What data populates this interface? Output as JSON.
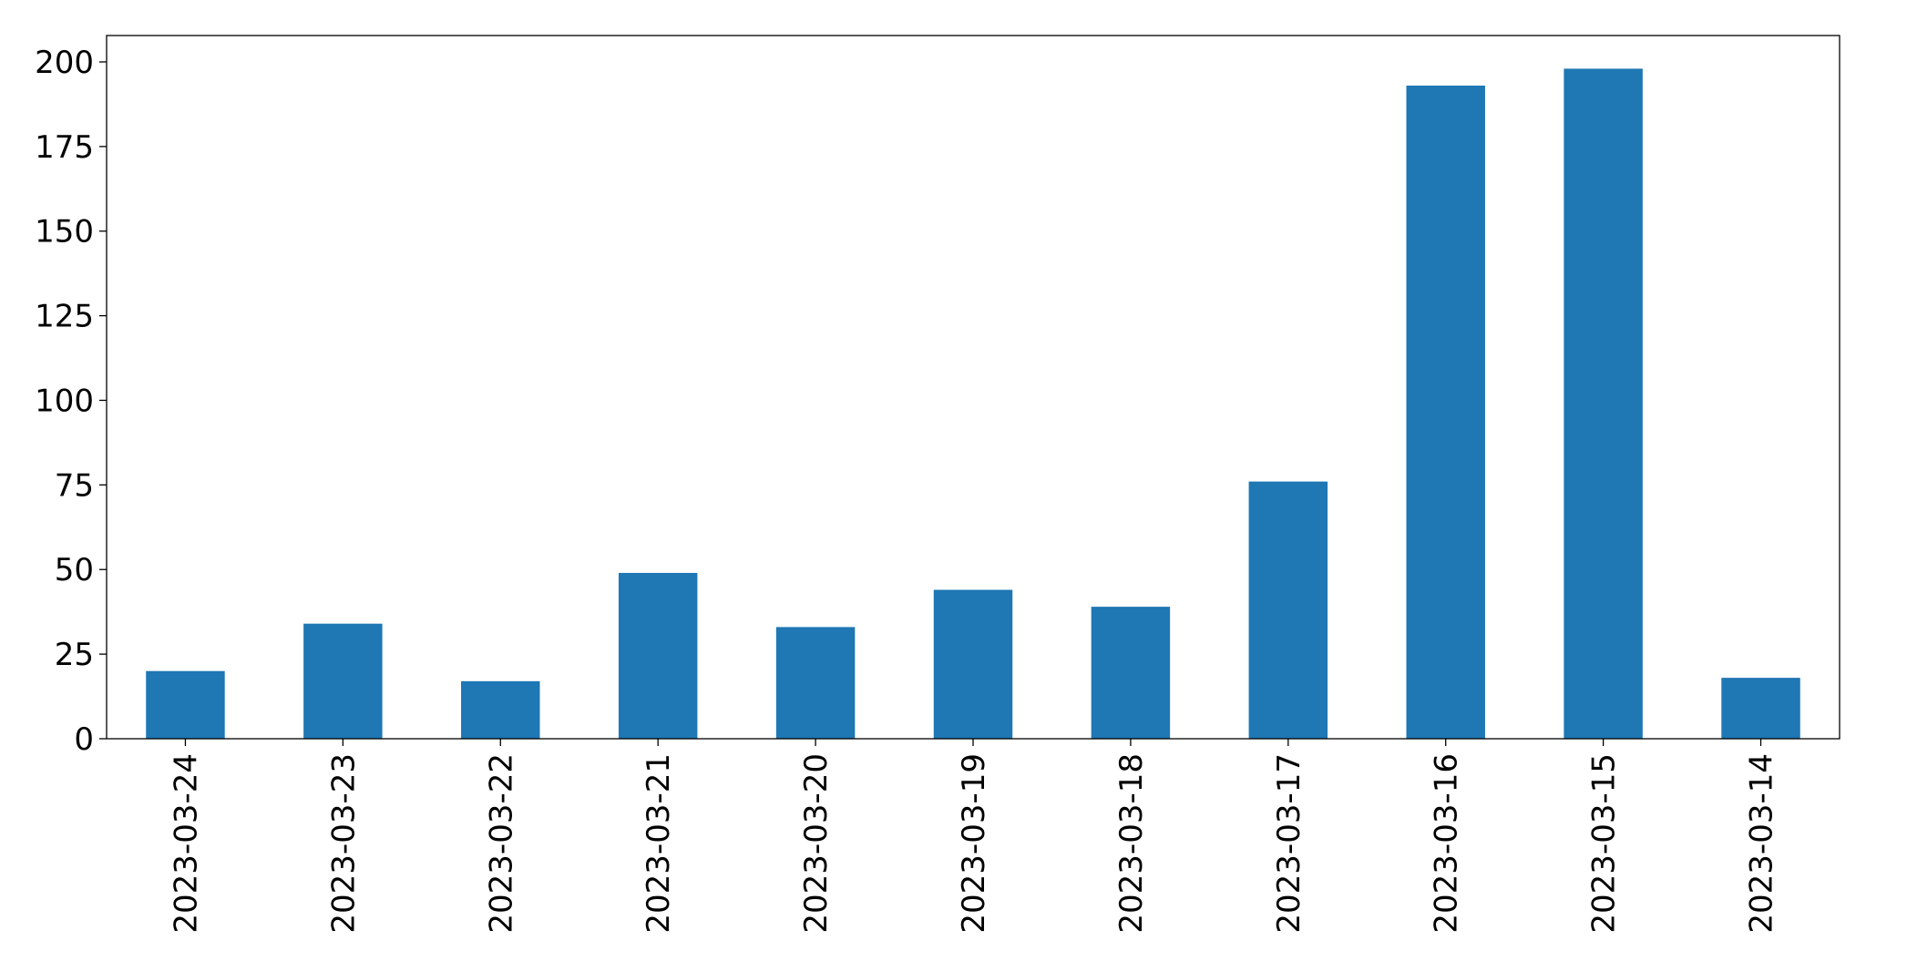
{
  "chart_data": {
    "type": "bar",
    "title": "",
    "xlabel": "",
    "ylabel": "",
    "categories": [
      "2023-03-24",
      "2023-03-23",
      "2023-03-22",
      "2023-03-21",
      "2023-03-20",
      "2023-03-19",
      "2023-03-18",
      "2023-03-17",
      "2023-03-16",
      "2023-03-15",
      "2023-03-14"
    ],
    "series": [
      {
        "values": [
          20,
          34,
          17,
          49,
          33,
          44,
          39,
          76,
          193,
          198,
          18
        ]
      }
    ],
    "ylim": [
      0,
      207.8
    ],
    "yticks": [
      0,
      25,
      50,
      75,
      100,
      125,
      150,
      175,
      200
    ],
    "grid": false,
    "legend": "none",
    "bar_color": "#1f77b4"
  }
}
